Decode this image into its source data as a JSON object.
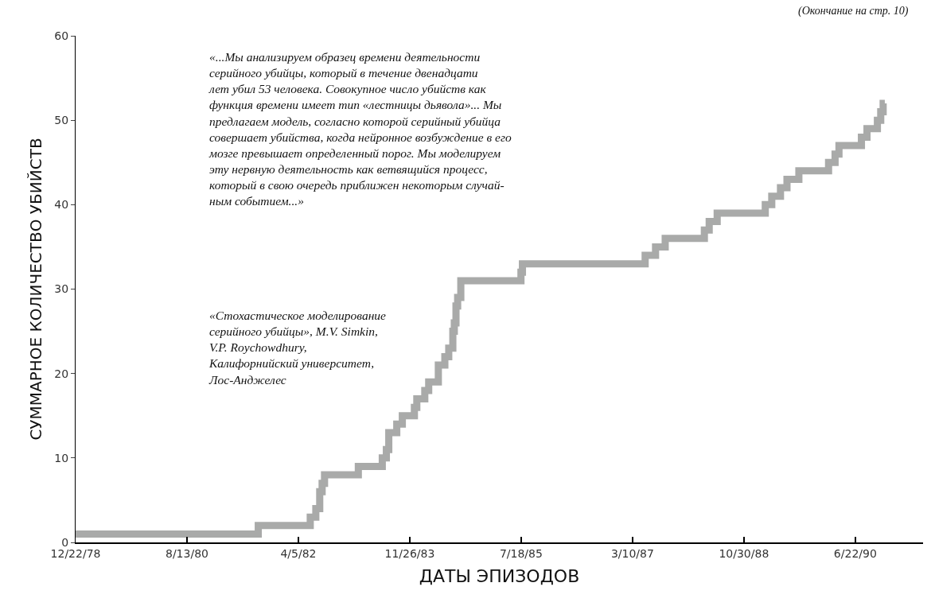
{
  "chart_data": {
    "type": "step",
    "xlabel": "ДАТЫ ЭПИЗОДОВ",
    "ylabel": "СУММАРНОЕ КОЛИЧЕСТВО УБИЙСТВ",
    "x": [
      "1978-12-22",
      "1981-09-01",
      "1982-06-08",
      "1982-07-08",
      "1982-07-29",
      "1982-08-11",
      "1982-08-24",
      "1983-02-22",
      "1983-07-01",
      "1983-07-23",
      "1983-08-05",
      "1983-09-17",
      "1983-10-17",
      "1983-12-21",
      "1984-01-03",
      "1984-02-15",
      "1984-03-07",
      "1984-04-28",
      "1984-06-02",
      "1984-06-23",
      "1984-07-15",
      "1984-07-23",
      "1984-08-01",
      "1984-08-10",
      "1984-08-27",
      "1985-07-17",
      "1985-07-25",
      "1987-05-17",
      "1987-07-12",
      "1987-09-02",
      "1988-03-31",
      "1988-04-26",
      "1988-06-08",
      "1989-02-22",
      "1989-03-29",
      "1989-05-15",
      "1989-06-19",
      "1989-08-22",
      "1990-01-29",
      "1990-03-05",
      "1990-03-26",
      "1990-07-25",
      "1990-08-24",
      "1990-10-19",
      "1990-11-06",
      "1990-11-19",
      "1990-11-28"
    ],
    "series": [
      {
        "color": "#a9aaa9",
        "values": [
          1,
          2,
          3,
          4,
          6,
          7,
          8,
          9,
          10,
          11,
          13,
          14,
          15,
          16,
          17,
          18,
          19,
          21,
          22,
          23,
          25,
          26,
          28,
          29,
          31,
          32,
          33,
          34,
          35,
          36,
          37,
          38,
          39,
          40,
          41,
          42,
          43,
          44,
          45,
          46,
          47,
          48,
          49,
          50,
          51,
          52,
          52
        ]
      }
    ],
    "xlim": [
      "1978-12-22",
      "1991-06-22"
    ],
    "xticks": [
      {
        "value": "1978-12-22",
        "label": "12/22/78"
      },
      {
        "value": "1980-08-13",
        "label": "8/13/80"
      },
      {
        "value": "1982-04-05",
        "label": "4/5/82"
      },
      {
        "value": "1983-11-26",
        "label": "11/26/83"
      },
      {
        "value": "1985-07-18",
        "label": "7/18/85"
      },
      {
        "value": "1987-03-10",
        "label": "3/10/87"
      },
      {
        "value": "1988-10-30",
        "label": "10/30/88"
      },
      {
        "value": "1990-06-22",
        "label": "6/22/90"
      }
    ],
    "ylim": [
      0,
      60
    ],
    "yticks": [
      0,
      10,
      20,
      30,
      40,
      50,
      60
    ],
    "marker": "none",
    "line_style": "solid",
    "annotations": [
      "«...Мы анализируем образец времени деятельности\nсерийного убийцы, который в течение двенадцати\nлет убил 53 человека. Совокупное число убийств как\nфункция времени имеет тип «лестницы дьявола»... Мы\nпредлагаем модель, согласно которой серийный убийца\nсовершает убийства, когда нейронное возбуждение в его\nмозге превышает определенный порог. Мы моделируем\nэту нервную деятельность как ветвящийся процесс,\nкоторый в свою очередь приближен некоторым случай-\nным событием...»",
      "«Стохастическое моделирование\nсерийного убийцы», M.V. Simkin,\nV.P. Roychowdhury,\nКалифорнийский университет,\nЛос-Анджелес",
      "(Окончание на стр. 10)"
    ]
  }
}
